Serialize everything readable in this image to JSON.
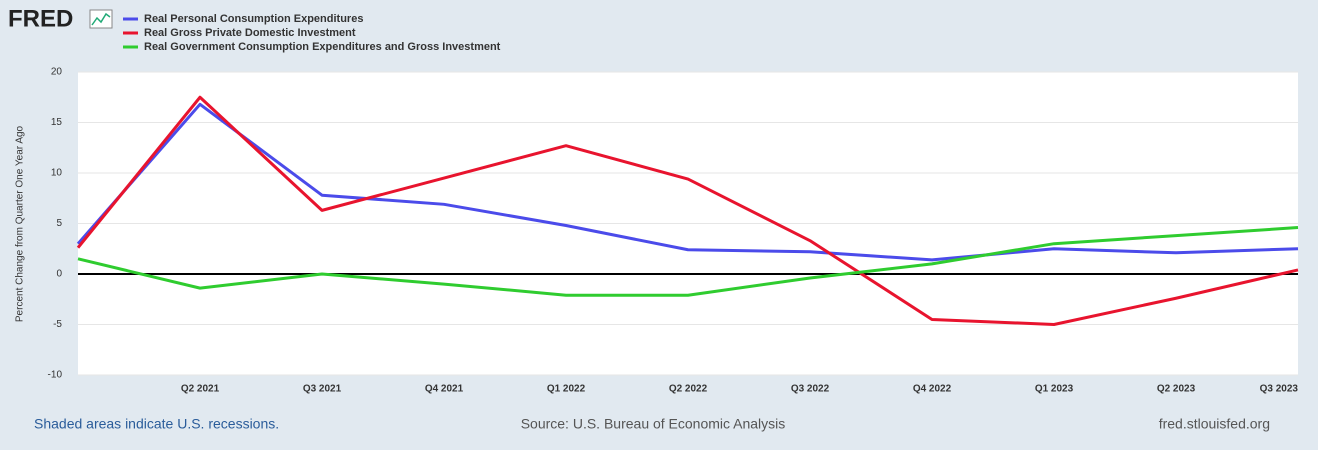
{
  "logo": "FRED",
  "chart_data": {
    "type": "line",
    "y_label": "Percent Change from Quarter One Year Ago",
    "categories": [
      null,
      "Q2 2021",
      "Q3 2021",
      "Q4 2021",
      "Q1 2022",
      "Q2 2022",
      "Q3 2022",
      "Q4 2022",
      "Q1 2023",
      "Q2 2023",
      "Q3 2023"
    ],
    "series": [
      {
        "name": "Real Personal Consumption Expenditures",
        "color": "#4b4bea",
        "values": [
          3.0,
          16.8,
          7.8,
          6.9,
          4.8,
          2.4,
          2.2,
          1.4,
          2.5,
          2.1,
          2.5
        ]
      },
      {
        "name": "Real Gross Private Domestic Investment",
        "color": "#e8142e",
        "values": [
          2.6,
          17.5,
          6.3,
          9.5,
          12.7,
          9.4,
          3.3,
          -4.5,
          -5.0,
          -2.4,
          0.4
        ]
      },
      {
        "name": "Real Government Consumption Expenditures and Gross Investment",
        "color": "#2fcc2f",
        "values": [
          1.5,
          -1.4,
          0,
          -1.0,
          -2.1,
          -2.1,
          -0.4,
          1.0,
          3.0,
          3.8,
          4.6
        ]
      }
    ],
    "ylim": [
      -10,
      20
    ],
    "yticks": [
      -10,
      -5,
      0,
      5,
      10,
      15,
      20
    ],
    "grid": true,
    "footer": {
      "left": "Shaded areas indicate U.S. recessions.",
      "center": "Source: U.S. Bureau of Economic Analysis",
      "right": "fred.stlouisfed.org"
    }
  }
}
